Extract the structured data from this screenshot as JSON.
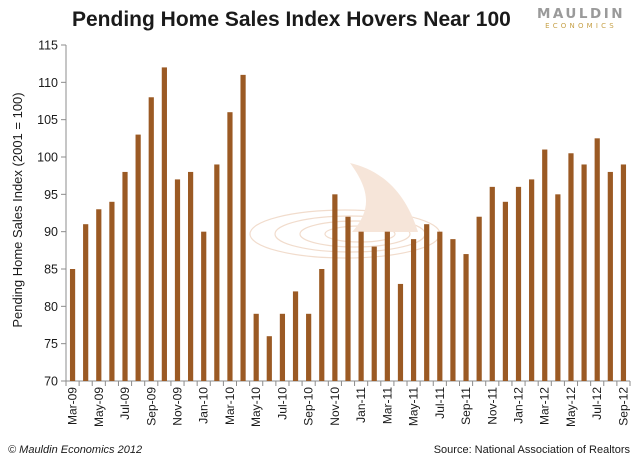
{
  "header": {
    "logo_main": "MAULDIN",
    "logo_sub": "ECONOMICS"
  },
  "footer": {
    "copyright": "© Mauldin Economics 2012",
    "source": "Source: National Association of Realtors"
  },
  "colors": {
    "bar": "#9b5a24",
    "axis": "#8c8c8c",
    "watermark": "#f0d8c8"
  },
  "chart_data": {
    "type": "bar",
    "title": "Pending Home Sales Index Hovers Near 100",
    "xlabel": "",
    "ylabel": "Pending Home Sales  Index  (2001 = 100)",
    "ylim": [
      70,
      115
    ],
    "yticks": [
      70,
      75,
      80,
      85,
      90,
      95,
      100,
      105,
      110,
      115
    ],
    "grid": false,
    "categories": [
      "Mar-09",
      "Apr-09",
      "May-09",
      "Jun-09",
      "Jul-09",
      "Aug-09",
      "Sep-09",
      "Oct-09",
      "Nov-09",
      "Dec-09",
      "Jan-10",
      "Feb-10",
      "Mar-10",
      "Apr-10",
      "May-10",
      "Jun-10",
      "Jul-10",
      "Aug-10",
      "Sep-10",
      "Oct-10",
      "Nov-10",
      "Dec-10",
      "Jan-11",
      "Feb-11",
      "Mar-11",
      "Apr-11",
      "May-11",
      "Jun-11",
      "Jul-11",
      "Aug-11",
      "Sep-11",
      "Oct-11",
      "Nov-11",
      "Dec-11",
      "Jan-12",
      "Feb-12",
      "Mar-12",
      "Apr-12",
      "May-12",
      "Jun-12",
      "Jul-12",
      "Aug-12",
      "Sep-12"
    ],
    "values": [
      85,
      91,
      93,
      94,
      98,
      103,
      108,
      112,
      97,
      98,
      90,
      99,
      106,
      111,
      79,
      76,
      79,
      82,
      79,
      85,
      95,
      92,
      90,
      88,
      90,
      83,
      89,
      91,
      90,
      89,
      87,
      92,
      96,
      94,
      96,
      97,
      101,
      95,
      100.5,
      99,
      102.5,
      98,
      99
    ],
    "xtick_labels": [
      "Mar-09",
      "May-09",
      "Jul-09",
      "Sep-09",
      "Nov-09",
      "Jan-10",
      "Mar-10",
      "May-10",
      "Jul-10",
      "Sep-10",
      "Nov-10",
      "Jan-11",
      "Mar-11",
      "May-11",
      "Jul-11",
      "Sep-11",
      "Nov-11",
      "Jan-12",
      "Mar-12",
      "May-12",
      "Jul-12",
      "Sep-12"
    ]
  }
}
